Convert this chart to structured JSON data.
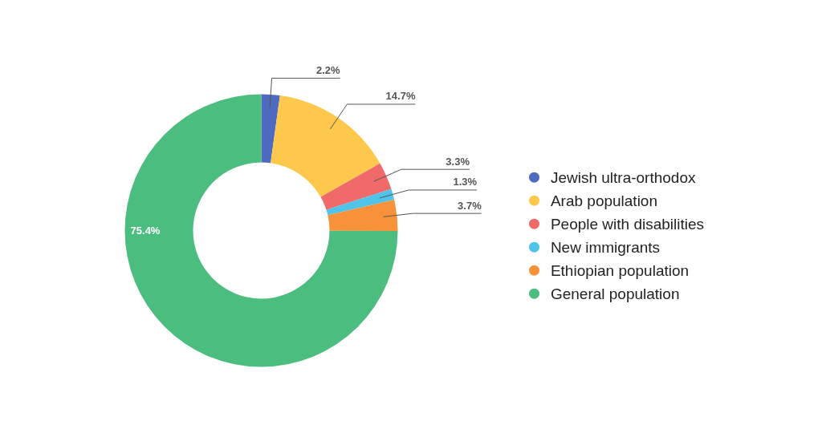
{
  "chart_data": {
    "type": "donut",
    "categories": [
      "Jewish ultra-orthodox",
      "Arab population",
      "People with disabilities",
      "New immigrants",
      "Ethiopian population",
      "General population"
    ],
    "values": [
      2.2,
      14.7,
      3.3,
      1.3,
      3.7,
      75.4
    ],
    "colors": [
      "#4e6bbf",
      "#fec84d",
      "#f06a6a",
      "#4fc3e8",
      "#f7923a",
      "#4bbd7f"
    ],
    "value_labels": [
      "2.2%",
      "14.7%",
      "3.3%",
      "1.3%",
      "3.7%",
      "75.4%"
    ],
    "legend": "right"
  }
}
